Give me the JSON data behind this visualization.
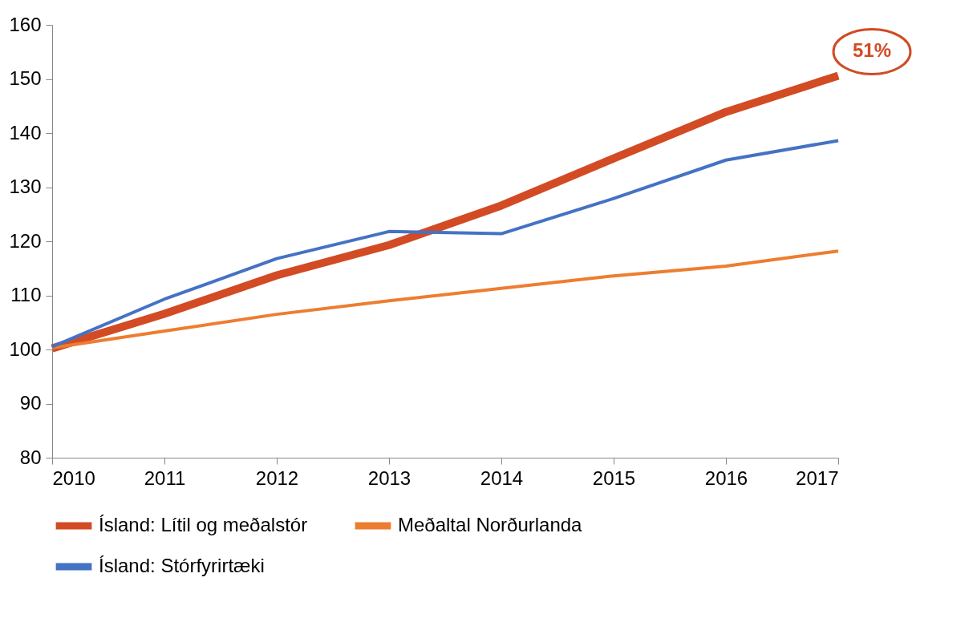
{
  "chart_data": {
    "type": "line",
    "x": [
      2010,
      2011,
      2012,
      2013,
      2014,
      2015,
      2016,
      2017
    ],
    "series": [
      {
        "name": "Ísland: Lítil og meðalstór",
        "color": "#d24b24",
        "values": [
          100.2,
          106.6,
          113.7,
          119.3,
          126.6,
          135.3,
          143.9,
          150.6
        ]
      },
      {
        "name": "Meðaltal Norðurlanda",
        "color": "#ed7d31",
        "values": [
          100.3,
          103.4,
          106.5,
          109.0,
          111.3,
          113.6,
          115.4,
          118.2
        ]
      },
      {
        "name": "Ísland: Stórfyrirtæki",
        "color": "#4472c4",
        "values": [
          100.5,
          109.3,
          116.8,
          121.8,
          121.4,
          127.9,
          135.0,
          138.6
        ]
      }
    ],
    "xlim": [
      2010,
      2017
    ],
    "xticks": [
      2010,
      2011,
      2012,
      2013,
      2014,
      2015,
      2016,
      2017
    ],
    "ylim": [
      80,
      160
    ],
    "yticks": [
      80,
      90,
      100,
      110,
      120,
      130,
      140,
      150,
      160
    ],
    "grid": false,
    "legend": "bottom",
    "annotations": [
      {
        "text": "51%",
        "x": 2017,
        "y": 150.6
      }
    ]
  }
}
